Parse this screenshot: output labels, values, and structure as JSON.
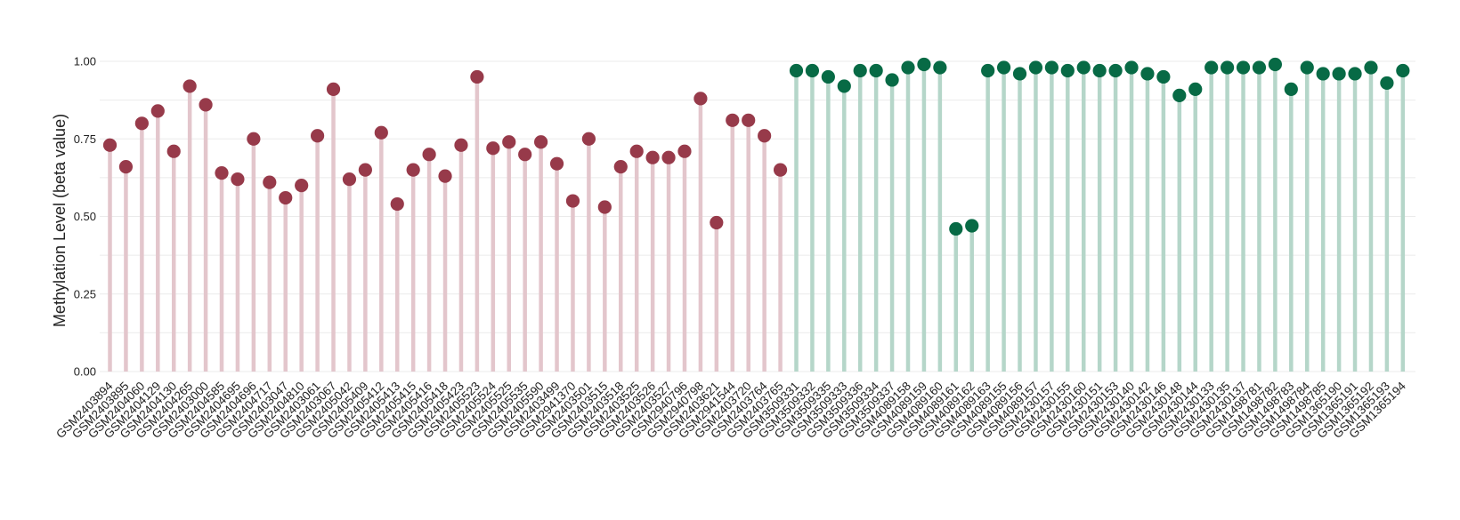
{
  "chart_data": {
    "type": "lollipop",
    "title": "",
    "xlabel": "",
    "ylabel": "Methylation Level (beta value)",
    "ylim": [
      0,
      1.0
    ],
    "yticks": [
      "0.00",
      "0.25",
      "0.50",
      "0.75",
      "1.00"
    ],
    "yticks_values": [
      0,
      0.25,
      0.5,
      0.75,
      1.0
    ],
    "grid": true,
    "legend": "none",
    "colors": {
      "group1_point": "#973a4a",
      "group1_stem": "#e3c6cc",
      "group2_point": "#076a45",
      "group2_stem": "#b5d6c9"
    },
    "series": [
      {
        "points": [
          [
            "GSM2403894",
            0.73
          ],
          [
            "GSM2403895",
            0.66
          ],
          [
            "GSM2404060",
            0.8
          ],
          [
            "GSM2404129",
            0.84
          ],
          [
            "GSM2404130",
            0.71
          ],
          [
            "GSM2404265",
            0.92
          ],
          [
            "GSM2403000",
            0.86
          ],
          [
            "GSM2404585",
            0.64
          ],
          [
            "GSM2404695",
            0.62
          ],
          [
            "GSM2404696",
            0.75
          ],
          [
            "GSM2404717",
            0.61
          ],
          [
            "GSM2403047",
            0.56
          ],
          [
            "GSM2404810",
            0.6
          ],
          [
            "GSM2403061",
            0.76
          ],
          [
            "GSM2403067",
            0.91
          ],
          [
            "GSM2405042",
            0.62
          ],
          [
            "GSM2405409",
            0.65
          ],
          [
            "GSM2405412",
            0.77
          ],
          [
            "GSM2405413",
            0.54
          ],
          [
            "GSM2405415",
            0.65
          ],
          [
            "GSM2405416",
            0.7
          ],
          [
            "GSM2405418",
            0.63
          ],
          [
            "GSM2405423",
            0.73
          ],
          [
            "GSM2405523",
            0.95
          ],
          [
            "GSM2405524",
            0.72
          ],
          [
            "GSM2405525",
            0.74
          ],
          [
            "GSM2405535",
            0.7
          ],
          [
            "GSM2405590",
            0.74
          ],
          [
            "GSM2403499",
            0.67
          ],
          [
            "GSM2941370",
            0.55
          ],
          [
            "GSM2403501",
            0.75
          ],
          [
            "GSM2403515",
            0.53
          ],
          [
            "GSM2403518",
            0.66
          ],
          [
            "GSM2403525",
            0.71
          ],
          [
            "GSM2403526",
            0.69
          ],
          [
            "GSM2403527",
            0.69
          ],
          [
            "GSM2940796",
            0.71
          ],
          [
            "GSM2940798",
            0.88
          ],
          [
            "GSM2403621",
            0.48
          ],
          [
            "GSM2941544",
            0.81
          ],
          [
            "GSM2403720",
            0.81
          ],
          [
            "GSM2403764",
            0.76
          ],
          [
            "GSM2403765",
            0.65
          ]
        ]
      },
      {
        "points": [
          [
            "GSM3509331",
            0.97
          ],
          [
            "GSM3509332",
            0.97
          ],
          [
            "GSM3509335",
            0.95
          ],
          [
            "GSM3509333",
            0.92
          ],
          [
            "GSM3509336",
            0.97
          ],
          [
            "GSM3509334",
            0.97
          ],
          [
            "GSM3509337",
            0.94
          ],
          [
            "GSM4089158",
            0.98
          ],
          [
            "GSM4089159",
            0.99
          ],
          [
            "GSM4089160",
            0.98
          ],
          [
            "GSM4089161",
            0.46
          ],
          [
            "GSM4089162",
            0.47
          ],
          [
            "GSM4089163",
            0.97
          ],
          [
            "GSM4089155",
            0.98
          ],
          [
            "GSM4089156",
            0.96
          ],
          [
            "GSM4089157",
            0.98
          ],
          [
            "GSM2430157",
            0.98
          ],
          [
            "GSM2430155",
            0.97
          ],
          [
            "GSM2430160",
            0.98
          ],
          [
            "GSM2430151",
            0.97
          ],
          [
            "GSM2430153",
            0.97
          ],
          [
            "GSM2430140",
            0.98
          ],
          [
            "GSM2430142",
            0.96
          ],
          [
            "GSM2430146",
            0.95
          ],
          [
            "GSM2430148",
            0.89
          ],
          [
            "GSM2430144",
            0.91
          ],
          [
            "GSM2430133",
            0.98
          ],
          [
            "GSM2430135",
            0.98
          ],
          [
            "GSM2430137",
            0.98
          ],
          [
            "GSM1498781",
            0.98
          ],
          [
            "GSM1498782",
            0.99
          ],
          [
            "GSM1498783",
            0.91
          ],
          [
            "GSM1498784",
            0.98
          ],
          [
            "GSM1498785",
            0.96
          ],
          [
            "GSM1365190",
            0.96
          ],
          [
            "GSM1365191",
            0.96
          ],
          [
            "GSM1365192",
            0.98
          ],
          [
            "GSM1365193",
            0.93
          ],
          [
            "GSM1365194",
            0.97
          ]
        ]
      }
    ]
  }
}
